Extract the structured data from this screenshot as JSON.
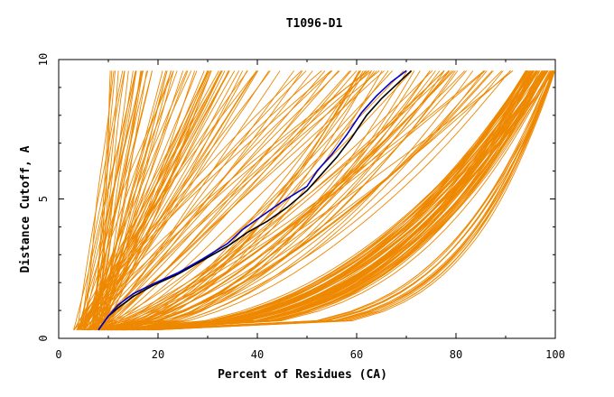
{
  "chart_data": {
    "type": "line",
    "title": "T1096-D1",
    "xlabel": "Percent of Residues (CA)",
    "ylabel": "Distance Cutoff, A",
    "xlim": [
      0,
      100
    ],
    "ylim": [
      0,
      10
    ],
    "x_ticks": [
      0,
      20,
      40,
      60,
      80,
      100
    ],
    "y_ticks": [
      0,
      5,
      10
    ],
    "grid": false,
    "colors": {
      "models": "#ee8800",
      "highlight_black": "#000000",
      "highlight_blue": "#0000cc"
    },
    "series_groups": [
      {
        "group": "steep",
        "count": 90,
        "x_start": [
          3,
          9
        ],
        "x_end": [
          10,
          68
        ],
        "y_start": 0.3,
        "y_end": 9.6,
        "curve": [
          0.8,
          1.2
        ]
      },
      {
        "group": "medium",
        "count": 45,
        "x_start": [
          5,
          15
        ],
        "x_end": [
          60,
          92
        ],
        "y_start": 0.3,
        "y_end": 9.6,
        "curve": [
          1.2,
          2.0
        ]
      },
      {
        "group": "shallow",
        "count": 70,
        "x_start": [
          8,
          15
        ],
        "x_end": [
          94,
          100
        ],
        "y_start": 0.3,
        "y_end": 9.6,
        "curve": [
          2.2,
          3.4
        ]
      },
      {
        "group": "flat",
        "count": 15,
        "x_start": [
          12,
          20
        ],
        "x_end": [
          99,
          100
        ],
        "y_start": 0.3,
        "y_end": 9.6,
        "curve": [
          3.8,
          5.0
        ]
      }
    ],
    "highlight_series": [
      {
        "color": "#000000",
        "x": [
          8,
          10,
          12,
          15,
          19,
          24,
          29,
          34,
          38,
          42,
          46,
          50,
          53,
          56,
          59,
          62,
          65,
          68,
          71
        ],
        "y": [
          0.3,
          0.8,
          1.1,
          1.5,
          1.9,
          2.3,
          2.8,
          3.3,
          3.8,
          4.2,
          4.7,
          5.3,
          5.9,
          6.5,
          7.2,
          8.0,
          8.6,
          9.1,
          9.6
        ]
      },
      {
        "color": "#0000cc",
        "x": [
          8,
          10,
          12,
          15,
          19,
          24,
          29,
          34,
          37,
          41,
          45,
          50,
          52,
          55,
          58,
          61,
          64,
          67,
          70
        ],
        "y": [
          0.3,
          0.8,
          1.2,
          1.6,
          1.95,
          2.35,
          2.85,
          3.4,
          3.9,
          4.4,
          4.9,
          5.45,
          6.0,
          6.6,
          7.3,
          8.1,
          8.7,
          9.2,
          9.6
        ]
      }
    ]
  }
}
